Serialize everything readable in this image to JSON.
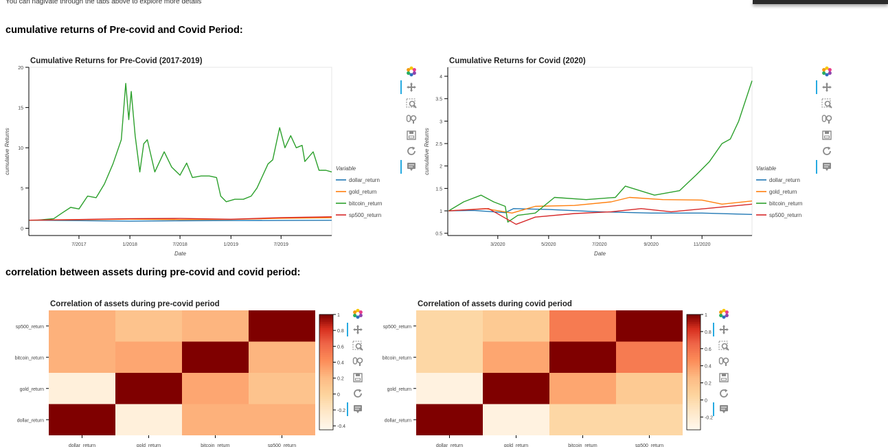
{
  "header": {
    "intro_text": "You can nagivate through the tabs above to explore more details",
    "section1_title": "cumulative returns of Pre-covid and Covid Period:",
    "section2_title": "correlation between assets during pre-covid and covid period:"
  },
  "toolbar": {
    "icons": [
      "bokeh-logo-icon",
      "pan-icon",
      "box-zoom-icon",
      "wheel-zoom-icon",
      "save-icon",
      "reset-icon",
      "hover-icon"
    ]
  },
  "colors": {
    "dollar": "#1f77b4",
    "gold": "#ff7f0e",
    "bitcoin": "#2ca02c",
    "sp500": "#d62728"
  },
  "chart_data": [
    {
      "type": "line",
      "title": "Cumulative Returns for Pre-Covid (2017-2019)",
      "xlabel": "Date",
      "ylabel": "cumulative Returns",
      "xlim": [
        "2017-01-01",
        "2019-12-31"
      ],
      "ylim": [
        -0.9,
        20
      ],
      "xticks": [
        {
          "value": "2017-07-01",
          "label": "7/2017"
        },
        {
          "value": "2018-01-01",
          "label": "1/2018"
        },
        {
          "value": "2018-07-01",
          "label": "7/2018"
        },
        {
          "value": "2019-01-01",
          "label": "1/2019"
        },
        {
          "value": "2019-07-01",
          "label": "7/2019"
        }
      ],
      "yticks": [
        0,
        5,
        10,
        15,
        20
      ],
      "legend_title": "Variable",
      "legend_position": "right",
      "series": [
        {
          "name": "dollar_return",
          "points": [
            [
              "2017-01-03",
              1.0
            ],
            [
              "2017-07-01",
              0.95
            ],
            [
              "2018-01-01",
              0.88
            ],
            [
              "2018-07-01",
              0.93
            ],
            [
              "2019-01-01",
              0.96
            ],
            [
              "2019-07-01",
              0.97
            ],
            [
              "2019-12-31",
              0.99
            ]
          ]
        },
        {
          "name": "gold_return",
          "points": [
            [
              "2017-01-03",
              1.0
            ],
            [
              "2017-07-01",
              1.06
            ],
            [
              "2018-01-01",
              1.13
            ],
            [
              "2018-07-01",
              1.08
            ],
            [
              "2019-01-01",
              1.1
            ],
            [
              "2019-07-01",
              1.24
            ],
            [
              "2019-12-31",
              1.31
            ]
          ]
        },
        {
          "name": "bitcoin_return",
          "points": [
            [
              "2017-01-03",
              1.0
            ],
            [
              "2017-02-01",
              1.0
            ],
            [
              "2017-03-01",
              1.1
            ],
            [
              "2017-04-01",
              1.2
            ],
            [
              "2017-05-01",
              1.9
            ],
            [
              "2017-06-01",
              2.6
            ],
            [
              "2017-07-01",
              2.4
            ],
            [
              "2017-08-01",
              4.0
            ],
            [
              "2017-09-01",
              3.8
            ],
            [
              "2017-10-01",
              5.5
            ],
            [
              "2017-11-01",
              8.0
            ],
            [
              "2017-12-01",
              11.0
            ],
            [
              "2017-12-17",
              18.0
            ],
            [
              "2017-12-28",
              13.5
            ],
            [
              "2018-01-06",
              17.0
            ],
            [
              "2018-01-20",
              11.5
            ],
            [
              "2018-02-06",
              7.0
            ],
            [
              "2018-02-20",
              10.5
            ],
            [
              "2018-03-05",
              11.0
            ],
            [
              "2018-04-01",
              7.0
            ],
            [
              "2018-05-05",
              9.5
            ],
            [
              "2018-06-01",
              7.6
            ],
            [
              "2018-07-01",
              6.6
            ],
            [
              "2018-07-25",
              8.1
            ],
            [
              "2018-08-15",
              6.3
            ],
            [
              "2018-09-15",
              6.5
            ],
            [
              "2018-10-15",
              6.5
            ],
            [
              "2018-11-10",
              6.3
            ],
            [
              "2018-11-25",
              4.0
            ],
            [
              "2018-12-15",
              3.3
            ],
            [
              "2019-01-15",
              3.6
            ],
            [
              "2019-02-15",
              3.6
            ],
            [
              "2019-03-15",
              4.0
            ],
            [
              "2019-04-05",
              5.0
            ],
            [
              "2019-05-15",
              8.0
            ],
            [
              "2019-06-01",
              8.5
            ],
            [
              "2019-06-26",
              12.5
            ],
            [
              "2019-07-15",
              10.0
            ],
            [
              "2019-08-05",
              11.5
            ],
            [
              "2019-08-25",
              10.0
            ],
            [
              "2019-09-15",
              10.3
            ],
            [
              "2019-09-25",
              8.3
            ],
            [
              "2019-10-25",
              9.5
            ],
            [
              "2019-11-15",
              7.2
            ],
            [
              "2019-12-10",
              7.2
            ],
            [
              "2019-12-31",
              7.0
            ]
          ]
        },
        {
          "name": "sp500_return",
          "points": [
            [
              "2017-01-03",
              1.0
            ],
            [
              "2017-07-01",
              1.09
            ],
            [
              "2018-01-01",
              1.2
            ],
            [
              "2018-07-01",
              1.22
            ],
            [
              "2019-01-01",
              1.12
            ],
            [
              "2019-07-01",
              1.33
            ],
            [
              "2019-12-31",
              1.43
            ]
          ]
        }
      ]
    },
    {
      "type": "line",
      "title": "Cumulative Returns for Covid (2020)",
      "xlabel": "Date",
      "ylabel": "cumulative Returns",
      "xlim": [
        "2020-01-01",
        "2020-12-31"
      ],
      "ylim": [
        0.45,
        4.2
      ],
      "xticks": [
        {
          "value": "2020-03-01",
          "label": "3/2020"
        },
        {
          "value": "2020-05-01",
          "label": "5/2020"
        },
        {
          "value": "2020-07-01",
          "label": "7/2020"
        },
        {
          "value": "2020-09-01",
          "label": "9/2020"
        },
        {
          "value": "2020-11-01",
          "label": "11/2020"
        }
      ],
      "yticks": [
        0.5,
        1,
        1.5,
        2,
        2.5,
        3,
        3.5,
        4
      ],
      "legend_title": "Variable",
      "legend_position": "right",
      "series": [
        {
          "name": "dollar_return",
          "points": [
            [
              "2020-01-02",
              1.0
            ],
            [
              "2020-02-01",
              1.01
            ],
            [
              "2020-03-10",
              0.96
            ],
            [
              "2020-03-20",
              1.05
            ],
            [
              "2020-05-01",
              1.03
            ],
            [
              "2020-07-01",
              0.98
            ],
            [
              "2020-09-01",
              0.95
            ],
            [
              "2020-11-01",
              0.95
            ],
            [
              "2020-12-31",
              0.92
            ]
          ]
        },
        {
          "name": "gold_return",
          "points": [
            [
              "2020-01-02",
              1.0
            ],
            [
              "2020-02-15",
              1.05
            ],
            [
              "2020-03-18",
              0.95
            ],
            [
              "2020-04-15",
              1.1
            ],
            [
              "2020-06-01",
              1.12
            ],
            [
              "2020-07-15",
              1.2
            ],
            [
              "2020-08-06",
              1.3
            ],
            [
              "2020-09-15",
              1.25
            ],
            [
              "2020-11-01",
              1.24
            ],
            [
              "2020-11-25",
              1.15
            ],
            [
              "2020-12-31",
              1.22
            ]
          ]
        },
        {
          "name": "bitcoin_return",
          "points": [
            [
              "2020-01-02",
              1.0
            ],
            [
              "2020-01-20",
              1.2
            ],
            [
              "2020-02-10",
              1.35
            ],
            [
              "2020-02-25",
              1.2
            ],
            [
              "2020-03-10",
              1.1
            ],
            [
              "2020-03-13",
              0.75
            ],
            [
              "2020-03-25",
              0.9
            ],
            [
              "2020-04-15",
              0.95
            ],
            [
              "2020-05-08",
              1.3
            ],
            [
              "2020-06-15",
              1.25
            ],
            [
              "2020-07-20",
              1.3
            ],
            [
              "2020-08-01",
              1.55
            ],
            [
              "2020-09-05",
              1.35
            ],
            [
              "2020-10-05",
              1.45
            ],
            [
              "2020-10-25",
              1.8
            ],
            [
              "2020-11-10",
              2.1
            ],
            [
              "2020-11-25",
              2.5
            ],
            [
              "2020-12-05",
              2.6
            ],
            [
              "2020-12-15",
              3.0
            ],
            [
              "2020-12-31",
              3.9
            ]
          ]
        },
        {
          "name": "sp500_return",
          "points": [
            [
              "2020-01-02",
              1.0
            ],
            [
              "2020-02-19",
              1.05
            ],
            [
              "2020-03-23",
              0.7
            ],
            [
              "2020-04-15",
              0.86
            ],
            [
              "2020-06-01",
              0.94
            ],
            [
              "2020-07-15",
              0.98
            ],
            [
              "2020-08-20",
              1.05
            ],
            [
              "2020-09-25",
              0.98
            ],
            [
              "2020-11-05",
              1.05
            ],
            [
              "2020-12-31",
              1.15
            ]
          ]
        }
      ]
    },
    {
      "type": "heatmap",
      "title": "Correlation of assets during pre-covid period",
      "x_categories": [
        "dollar_return",
        "gold_return",
        "bitcoin_return",
        "sp500_return"
      ],
      "y_categories": [
        "sp500_return",
        "bitcoin_return",
        "gold_return",
        "dollar_return"
      ],
      "values": [
        [
          0.25,
          0.13,
          0.23,
          1.0
        ],
        [
          0.25,
          0.3,
          1.0,
          0.23
        ],
        [
          -0.35,
          1.0,
          0.3,
          0.13
        ],
        [
          1.0,
          -0.35,
          0.25,
          0.25
        ]
      ],
      "colorbar": {
        "min": -0.45,
        "max": 1.0,
        "ticks": [
          1,
          0.8,
          0.6,
          0.4,
          0.2,
          0,
          -0.2,
          -0.4
        ]
      }
    },
    {
      "type": "heatmap",
      "title": "Correlation of assets during covid period",
      "x_categories": [
        "dollar_return",
        "gold_return",
        "bitcoin_return",
        "sp500_return"
      ],
      "y_categories": [
        "sp500_return",
        "bitcoin_return",
        "gold_return",
        "dollar_return"
      ],
      "values": [
        [
          0.02,
          0.14,
          0.55,
          1.0
        ],
        [
          0.02,
          0.35,
          1.0,
          0.55
        ],
        [
          -0.28,
          1.0,
          0.35,
          0.14
        ],
        [
          1.0,
          -0.28,
          0.02,
          0.02
        ]
      ],
      "colorbar": {
        "min": -0.35,
        "max": 1.0,
        "ticks": [
          1,
          0.8,
          0.6,
          0.4,
          0.2,
          0,
          -0.2
        ]
      }
    }
  ]
}
